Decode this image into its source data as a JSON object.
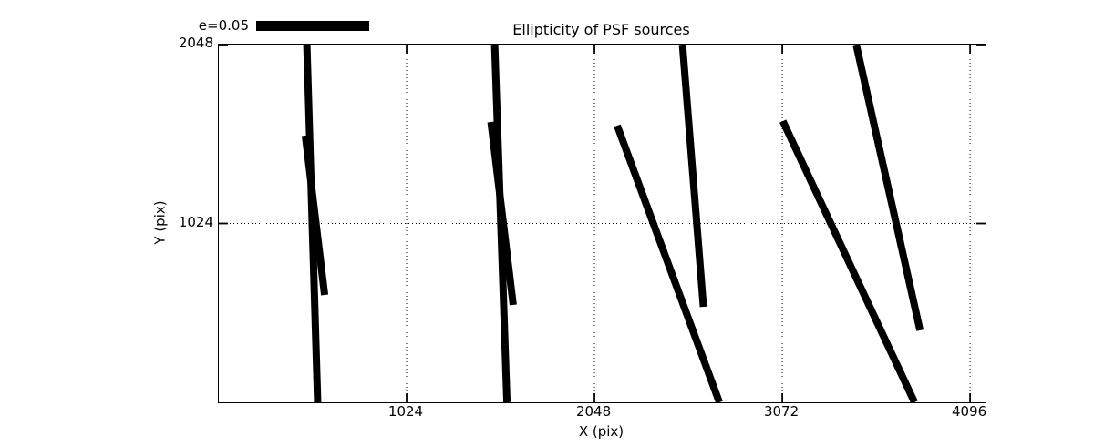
{
  "chart_data": {
    "type": "line",
    "subtype": "ellipticity-whisker-segments",
    "title": "Ellipticity of PSF sources",
    "xlabel": "X (pix)",
    "ylabel": "Y (pix)",
    "xlim": [
      0,
      4180
    ],
    "ylim": [
      0,
      2048
    ],
    "xticks": [
      1024,
      2048,
      3072,
      4096
    ],
    "xtick_labels": [
      "1024",
      "2048",
      "3072",
      "4096"
    ],
    "yticks": [
      1024,
      2048
    ],
    "ytick_labels": [
      "1024",
      "2048"
    ],
    "grid": true,
    "grid_style": "dotted",
    "tick_direction": "in",
    "legend": {
      "label": "e=0.05",
      "represents": "ellipticity scale bar",
      "position": "above-axes-upper-left"
    },
    "series_color": "#000000",
    "segment_stroke_px": 8,
    "segments": [
      {
        "x1": 480,
        "y1": 2048,
        "x2": 539,
        "y2": 0
      },
      {
        "x1": 472,
        "y1": 1527,
        "x2": 577,
        "y2": 615
      },
      {
        "x1": 1504,
        "y1": 2048,
        "x2": 1571,
        "y2": 0
      },
      {
        "x1": 1484,
        "y1": 1605,
        "x2": 1605,
        "y2": 558
      },
      {
        "x1": 2172,
        "y1": 1584,
        "x2": 2729,
        "y2": 0
      },
      {
        "x1": 2528,
        "y1": 2048,
        "x2": 2642,
        "y2": 547
      },
      {
        "x1": 3075,
        "y1": 1610,
        "x2": 3793,
        "y2": 0
      },
      {
        "x1": 3475,
        "y1": 2048,
        "x2": 3823,
        "y2": 412
      }
    ]
  }
}
